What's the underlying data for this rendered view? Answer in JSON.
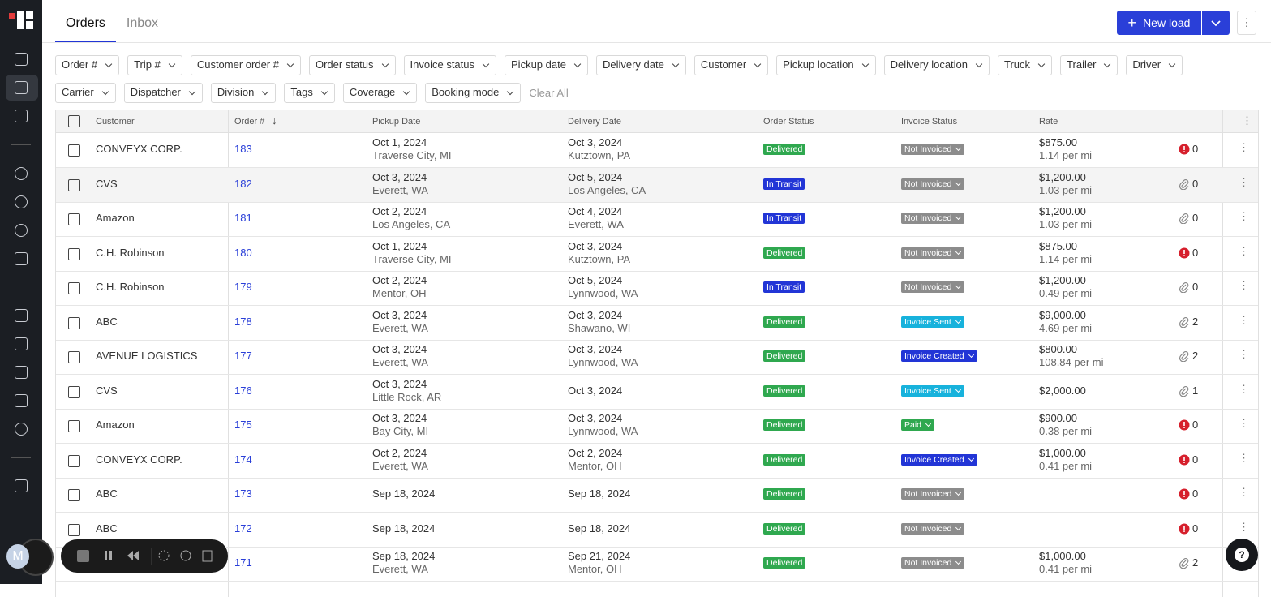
{
  "tabs": [
    "Orders",
    "Inbox"
  ],
  "new_load": "New load",
  "filters": [
    "Order #",
    "Trip #",
    "Customer order #",
    "Order status",
    "Invoice status",
    "Pickup date",
    "Delivery date",
    "Customer",
    "Pickup location",
    "Delivery location",
    "Truck",
    "Trailer",
    "Driver",
    "Carrier",
    "Dispatcher",
    "Division",
    "Tags",
    "Coverage",
    "Booking mode"
  ],
  "clear_all": "Clear All",
  "avatar": "M",
  "table": {
    "headers": [
      "Customer",
      "Order #",
      "Pickup Date",
      "Delivery Date",
      "Order Status",
      "Invoice Status",
      "Rate"
    ],
    "status_colors": {
      "Delivered": "#2fa84f",
      "In Transit": "#2235d6",
      "Not Invoiced": "#8c8c8c",
      "Invoice Sent": "#17b2dc",
      "Invoice Created": "#2235d6",
      "Paid": "#2fa84f"
    },
    "rows": [
      {
        "customer": "CONVEYX CORP.",
        "order": "183",
        "pickup_date": "Oct 1, 2024",
        "pickup_city": "Traverse City, MI",
        "delivery_date": "Oct 3, 2024",
        "delivery_city": "Kutztown, PA",
        "order_status": "Delivered",
        "invoice_status": "Not Invoiced",
        "rate": "$875.00",
        "per_mi": "1.14 per mi",
        "icon": "alert",
        "count": "0"
      },
      {
        "customer": "CVS",
        "order": "182",
        "pickup_date": "Oct 3, 2024",
        "pickup_city": "Everett, WA",
        "delivery_date": "Oct 5, 2024",
        "delivery_city": "Los Angeles, CA",
        "order_status": "In Transit",
        "invoice_status": "Not Invoiced",
        "rate": "$1,200.00",
        "per_mi": "1.03 per mi",
        "icon": "clip",
        "count": "0"
      },
      {
        "customer": "Amazon",
        "order": "181",
        "pickup_date": "Oct 2, 2024",
        "pickup_city": "Los Angeles, CA",
        "delivery_date": "Oct 4, 2024",
        "delivery_city": "Everett, WA",
        "order_status": "In Transit",
        "invoice_status": "Not Invoiced",
        "rate": "$1,200.00",
        "per_mi": "1.03 per mi",
        "icon": "clip",
        "count": "0"
      },
      {
        "customer": "C.H. Robinson",
        "order": "180",
        "pickup_date": "Oct 1, 2024",
        "pickup_city": "Traverse City, MI",
        "delivery_date": "Oct 3, 2024",
        "delivery_city": "Kutztown, PA",
        "order_status": "Delivered",
        "invoice_status": "Not Invoiced",
        "rate": "$875.00",
        "per_mi": "1.14 per mi",
        "icon": "alert",
        "count": "0"
      },
      {
        "customer": "C.H. Robinson",
        "order": "179",
        "pickup_date": "Oct 2, 2024",
        "pickup_city": "Mentor, OH",
        "delivery_date": "Oct 5, 2024",
        "delivery_city": "Lynnwood, WA",
        "order_status": "In Transit",
        "invoice_status": "Not Invoiced",
        "rate": "$1,200.00",
        "per_mi": "0.49 per mi",
        "icon": "clip",
        "count": "0"
      },
      {
        "customer": "ABC",
        "order": "178",
        "pickup_date": "Oct 3, 2024",
        "pickup_city": "Everett, WA",
        "delivery_date": "Oct 3, 2024",
        "delivery_city": "Shawano, WI",
        "order_status": "Delivered",
        "invoice_status": "Invoice Sent",
        "rate": "$9,000.00",
        "per_mi": "4.69 per mi",
        "icon": "clip",
        "count": "2"
      },
      {
        "customer": "AVENUE LOGISTICS",
        "order": "177",
        "pickup_date": "Oct 3, 2024",
        "pickup_city": "Everett, WA",
        "delivery_date": "Oct 3, 2024",
        "delivery_city": "Lynnwood, WA",
        "order_status": "Delivered",
        "invoice_status": "Invoice Created",
        "rate": "$800.00",
        "per_mi": "108.84 per mi",
        "icon": "clip",
        "count": "2"
      },
      {
        "customer": "CVS",
        "order": "176",
        "pickup_date": "Oct 3, 2024",
        "pickup_city": "Little Rock, AR",
        "delivery_date": "Oct 3, 2024",
        "order_status": "Delivered",
        "invoice_status": "Invoice Sent",
        "rate": "$2,000.00",
        "icon": "clip",
        "count": "1"
      },
      {
        "customer": "Amazon",
        "order": "175",
        "pickup_date": "Oct 3, 2024",
        "pickup_city": "Bay City, MI",
        "delivery_date": "Oct 3, 2024",
        "delivery_city": "Lynnwood, WA",
        "order_status": "Delivered",
        "invoice_status": "Paid",
        "rate": "$900.00",
        "per_mi": "0.38 per mi",
        "icon": "alert",
        "count": "0"
      },
      {
        "customer": "CONVEYX CORP.",
        "order": "174",
        "pickup_date": "Oct 2, 2024",
        "pickup_city": "Everett, WA",
        "delivery_date": "Oct 2, 2024",
        "delivery_city": "Mentor, OH",
        "order_status": "Delivered",
        "invoice_status": "Invoice Created",
        "rate": "$1,000.00",
        "per_mi": "0.41 per mi",
        "icon": "alert",
        "count": "0"
      },
      {
        "customer": "ABC",
        "order": "173",
        "pickup_date": "Sep 18, 2024",
        "delivery_date": "Sep 18, 2024",
        "order_status": "Delivered",
        "invoice_status": "Not Invoiced",
        "icon": "alert",
        "count": "0"
      },
      {
        "customer": "ABC",
        "order": "172",
        "pickup_date": "Sep 18, 2024",
        "delivery_date": "Sep 18, 2024",
        "order_status": "Delivered",
        "invoice_status": "Not Invoiced",
        "icon": "alert",
        "count": "0"
      },
      {
        "customer": "",
        "order": "171",
        "pickup_date": "Sep 18, 2024",
        "pickup_city": "Everett, WA",
        "delivery_date": "Sep 21, 2024",
        "delivery_city": "Mentor, OH",
        "order_status": "Delivered",
        "invoice_status": "Not Invoiced",
        "rate": "$1,000.00",
        "per_mi": "0.41 per mi",
        "icon": "clip",
        "count": "2"
      }
    ]
  }
}
